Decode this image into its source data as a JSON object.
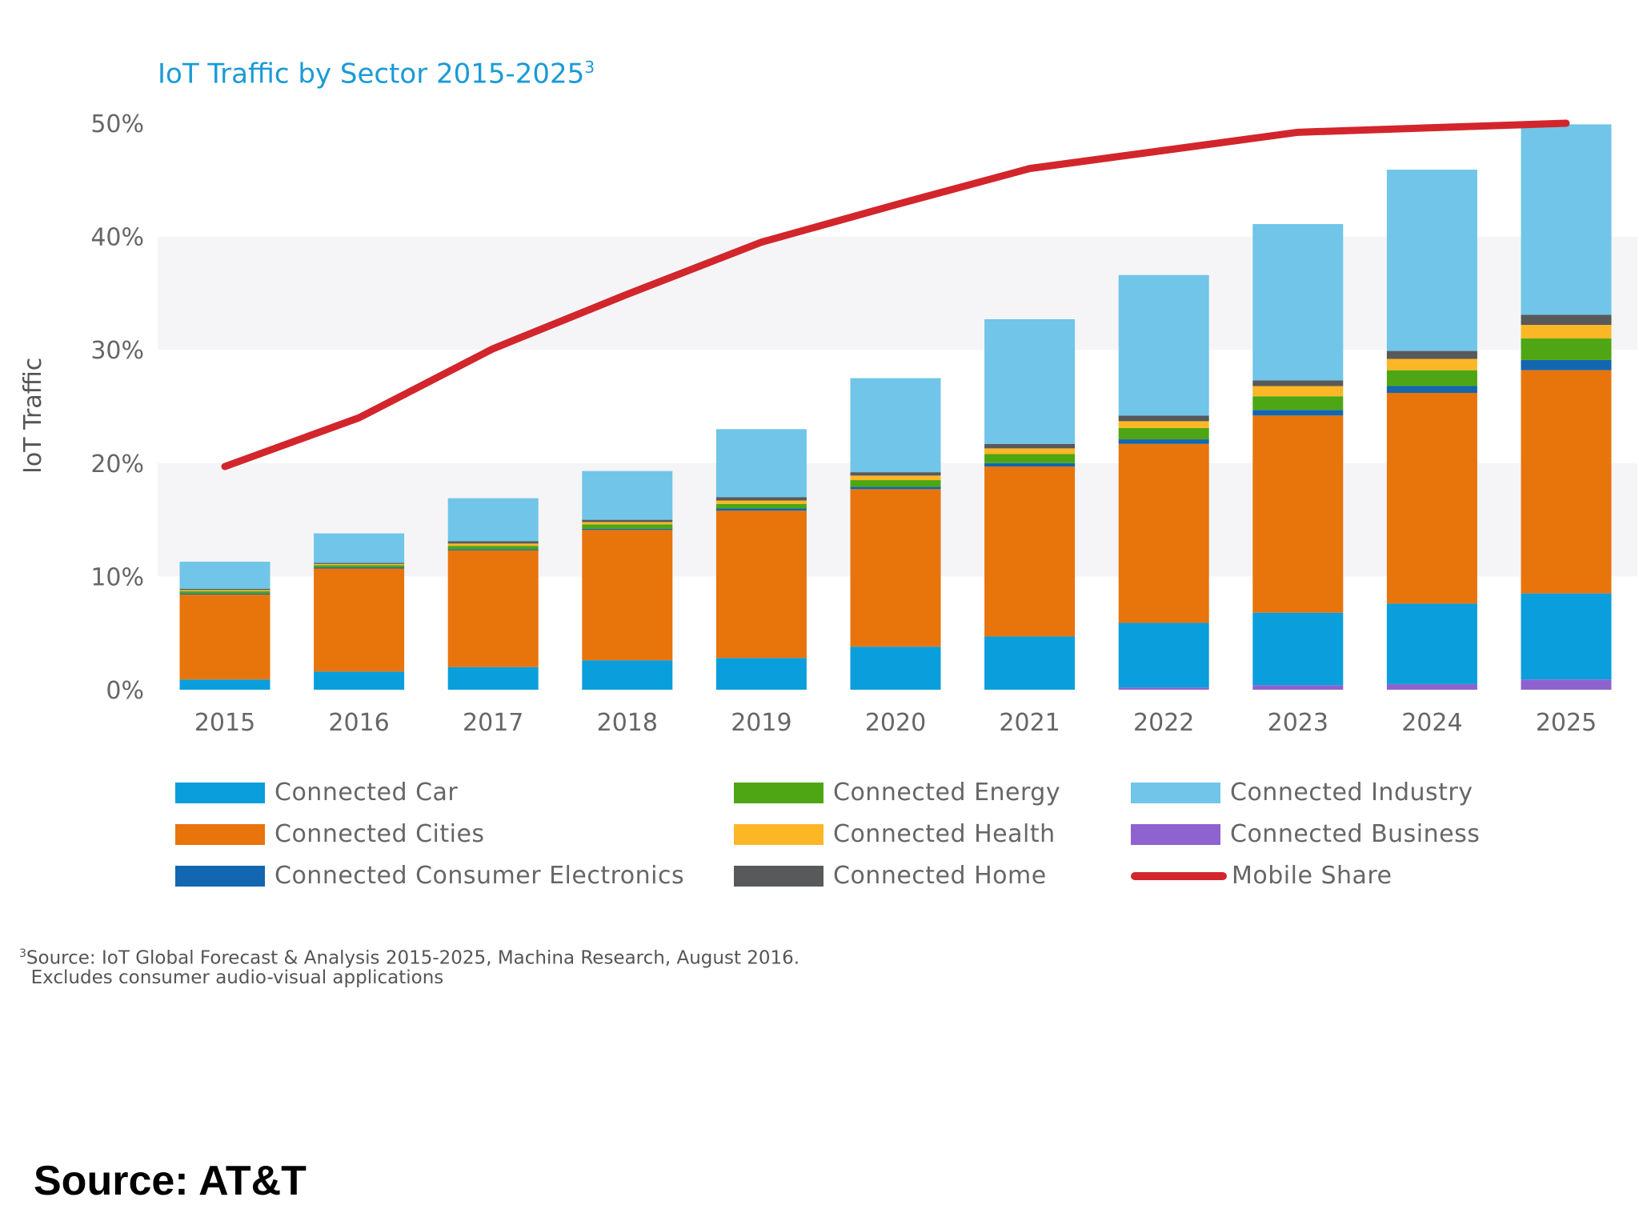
{
  "chart_data": {
    "type": "bar",
    "stacked": true,
    "title": "IoT Traffic by Sector 2015-2025",
    "title_superscript": "3",
    "ylabel": "IoT Traffic",
    "xlabel": "",
    "ylim": [
      0,
      50
    ],
    "yticks": [
      0,
      10,
      20,
      30,
      40,
      50
    ],
    "ytick_labels": [
      "0%",
      "10%",
      "20%",
      "30%",
      "40%",
      "50%"
    ],
    "categories": [
      "2015",
      "2016",
      "2017",
      "2018",
      "2019",
      "2020",
      "2021",
      "2022",
      "2023",
      "2024",
      "2025"
    ],
    "series": [
      {
        "name": "Connected Business",
        "color": "#8e63cf",
        "values": [
          0,
          0,
          0,
          0,
          0,
          0,
          0,
          0.2,
          0.4,
          0.5,
          0.9
        ]
      },
      {
        "name": "Connected Car",
        "color": "#0a9edc",
        "values": [
          0.9,
          1.6,
          2.0,
          2.6,
          2.8,
          3.8,
          4.7,
          5.7,
          6.4,
          7.1,
          7.6
        ]
      },
      {
        "name": "Connected Cities",
        "color": "#e8740c",
        "values": [
          7.5,
          9.1,
          10.3,
          11.5,
          13.0,
          13.9,
          15.0,
          15.8,
          17.4,
          18.6,
          19.7
        ]
      },
      {
        "name": "Connected Consumer Electronics",
        "color": "#1366b0",
        "values": [
          0.1,
          0.1,
          0.1,
          0.1,
          0.2,
          0.2,
          0.3,
          0.4,
          0.5,
          0.6,
          0.9
        ]
      },
      {
        "name": "Connected Energy",
        "color": "#4ea614",
        "values": [
          0.2,
          0.2,
          0.3,
          0.4,
          0.4,
          0.6,
          0.8,
          1.0,
          1.2,
          1.4,
          1.9
        ]
      },
      {
        "name": "Connected Health",
        "color": "#fbb726",
        "values": [
          0.1,
          0.1,
          0.2,
          0.2,
          0.3,
          0.4,
          0.5,
          0.6,
          0.9,
          1.0,
          1.2
        ]
      },
      {
        "name": "Connected Home",
        "color": "#58595b",
        "values": [
          0.1,
          0.1,
          0.2,
          0.2,
          0.3,
          0.3,
          0.4,
          0.5,
          0.5,
          0.7,
          0.9
        ]
      },
      {
        "name": "Connected Industry",
        "color": "#70c5e8",
        "values": [
          2.4,
          2.6,
          3.8,
          4.3,
          6.0,
          8.3,
          11.0,
          12.4,
          13.8,
          16.0,
          16.8
        ]
      }
    ],
    "line_series": {
      "name": "Mobile Share",
      "color": "#d2262c",
      "values": [
        19.7,
        24.0,
        30.1,
        34.9,
        39.5,
        42.8,
        46.0,
        47.6,
        49.2,
        49.6,
        50.0
      ]
    },
    "legend": [
      {
        "name": "Connected Car",
        "color": "#0a9edc",
        "kind": "box"
      },
      {
        "name": "Connected Cities",
        "color": "#e8740c",
        "kind": "box"
      },
      {
        "name": "Connected Consumer Electronics",
        "color": "#1366b0",
        "kind": "box"
      },
      {
        "name": "Connected Energy",
        "color": "#4ea614",
        "kind": "box"
      },
      {
        "name": "Connected Health",
        "color": "#fbb726",
        "kind": "box"
      },
      {
        "name": "Connected Home",
        "color": "#58595b",
        "kind": "box"
      },
      {
        "name": "Connected Industry",
        "color": "#70c5e8",
        "kind": "box"
      },
      {
        "name": "Connected Business",
        "color": "#8e63cf",
        "kind": "box"
      },
      {
        "name": "Mobile Share",
        "color": "#d2262c",
        "kind": "line"
      }
    ],
    "legend_position": "bottom"
  },
  "footnote": {
    "marker": "3",
    "line1": "Source: IoT Global Forecast & Analysis 2015-2025, Machina Research, August 2016.",
    "line2": "Excludes consumer audio-visual applications"
  },
  "source_label": "Source: AT&T"
}
